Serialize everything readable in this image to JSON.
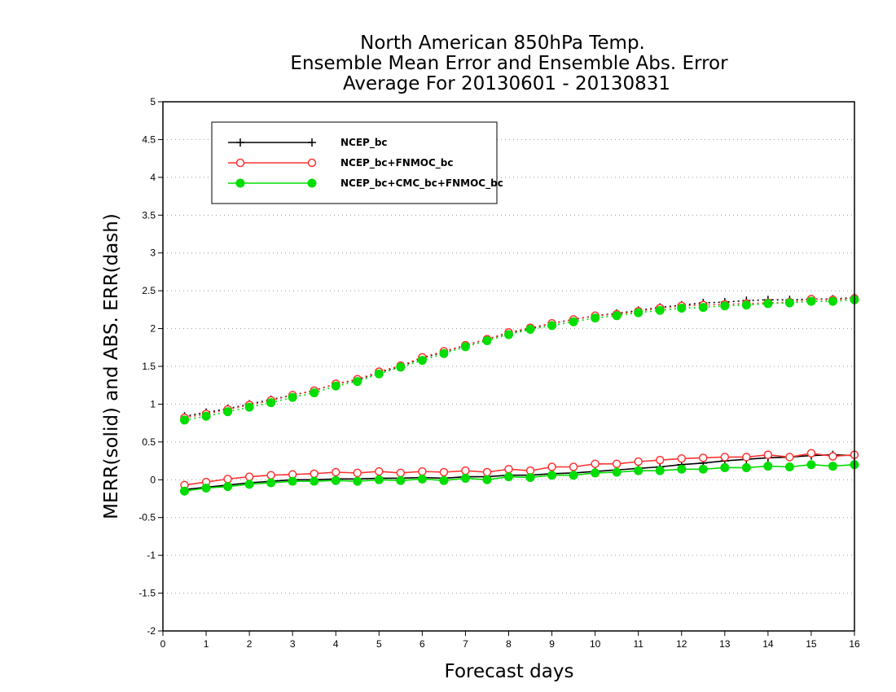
{
  "chart_data": {
    "type": "line",
    "title": [
      "North American 850hPa Temp.",
      "Ensemble Mean Error and Ensemble Abs. Error",
      "Average For 20130601 - 20130831"
    ],
    "xlabel": "Forecast days",
    "ylabel": "MERR(solid) and ABS. ERR(dash)",
    "xlim": [
      0,
      16
    ],
    "ylim": [
      -2,
      5
    ],
    "xticks": [
      "0",
      "1",
      "2",
      "3",
      "4",
      "5",
      "6",
      "7",
      "8",
      "9",
      "10",
      "11",
      "12",
      "13",
      "14",
      "15",
      "16"
    ],
    "yticks": [
      "-2",
      "-1.5",
      "-1",
      "-0.5",
      "0",
      "0.5",
      "1",
      "1.5",
      "2",
      "2.5",
      "3",
      "3.5",
      "4",
      "4.5",
      "5"
    ],
    "grid": "horizontal dotted",
    "legend_position": "top-left",
    "x": [
      0.5,
      1,
      1.5,
      2,
      2.5,
      3,
      3.5,
      4,
      4.5,
      5,
      5.5,
      6,
      6.5,
      7,
      7.5,
      8,
      8.5,
      9,
      9.5,
      10,
      10.5,
      11,
      11.5,
      12,
      12.5,
      13,
      13.5,
      14,
      14.5,
      15,
      15.5,
      16
    ],
    "series": [
      {
        "name": "NCEP_bc",
        "color": "#000000",
        "marker": "plus",
        "merr": [
          -0.13,
          -0.1,
          -0.07,
          -0.04,
          -0.02,
          0.0,
          0.0,
          0.01,
          0.01,
          0.02,
          0.02,
          0.03,
          0.02,
          0.04,
          0.04,
          0.06,
          0.06,
          0.08,
          0.09,
          0.11,
          0.13,
          0.15,
          0.17,
          0.2,
          0.22,
          0.25,
          0.27,
          0.29,
          0.3,
          0.32,
          0.33,
          0.32
        ],
        "abserr": [
          0.84,
          0.89,
          0.94,
          1.0,
          1.06,
          1.12,
          1.18,
          1.27,
          1.32,
          1.42,
          1.5,
          1.61,
          1.69,
          1.78,
          1.86,
          1.94,
          2.0,
          2.07,
          2.12,
          2.17,
          2.2,
          2.24,
          2.28,
          2.31,
          2.34,
          2.35,
          2.37,
          2.38,
          2.38,
          2.39,
          2.39,
          2.41
        ]
      },
      {
        "name": "NCEP_bc+FNMOC_bc",
        "color": "#ff3333",
        "marker": "open-circle",
        "merr": [
          -0.07,
          -0.03,
          0.01,
          0.04,
          0.06,
          0.07,
          0.08,
          0.1,
          0.09,
          0.11,
          0.09,
          0.11,
          0.1,
          0.12,
          0.1,
          0.14,
          0.12,
          0.17,
          0.17,
          0.21,
          0.21,
          0.24,
          0.26,
          0.28,
          0.29,
          0.3,
          0.3,
          0.33,
          0.3,
          0.35,
          0.31,
          0.33
        ],
        "abserr": [
          0.82,
          0.87,
          0.93,
          0.99,
          1.05,
          1.12,
          1.18,
          1.27,
          1.33,
          1.43,
          1.51,
          1.62,
          1.7,
          1.78,
          1.86,
          1.95,
          2.01,
          2.07,
          2.12,
          2.17,
          2.19,
          2.23,
          2.27,
          2.3,
          2.31,
          2.32,
          2.33,
          2.34,
          2.35,
          2.39,
          2.38,
          2.4
        ]
      },
      {
        "name": "NCEP_bc+CMC_bc+FNMOC_bc",
        "color": "#00dd00",
        "marker": "filled-circle",
        "merr": [
          -0.15,
          -0.11,
          -0.09,
          -0.06,
          -0.04,
          -0.02,
          -0.02,
          -0.01,
          -0.02,
          0.0,
          -0.01,
          0.01,
          -0.01,
          0.02,
          0.0,
          0.04,
          0.03,
          0.06,
          0.06,
          0.09,
          0.1,
          0.12,
          0.12,
          0.14,
          0.14,
          0.16,
          0.16,
          0.18,
          0.17,
          0.2,
          0.18,
          0.2
        ],
        "abserr": [
          0.79,
          0.84,
          0.9,
          0.96,
          1.02,
          1.09,
          1.15,
          1.24,
          1.3,
          1.4,
          1.49,
          1.58,
          1.67,
          1.76,
          1.84,
          1.92,
          1.99,
          2.04,
          2.09,
          2.14,
          2.17,
          2.21,
          2.24,
          2.27,
          2.28,
          2.3,
          2.31,
          2.33,
          2.34,
          2.36,
          2.36,
          2.38
        ]
      }
    ]
  }
}
